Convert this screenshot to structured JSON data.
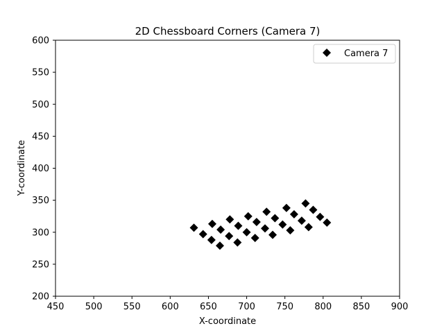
{
  "chart_data": {
    "type": "scatter",
    "title": "2D Chessboard Corners (Camera 7)",
    "xlabel": "X-coordinate",
    "ylabel": "Y-coordinate",
    "xlim": [
      450,
      900
    ],
    "ylim": [
      200,
      600
    ],
    "xticks": [
      450,
      500,
      550,
      600,
      650,
      700,
      750,
      800,
      850,
      900
    ],
    "yticks": [
      200,
      250,
      300,
      350,
      400,
      450,
      500,
      550,
      600
    ],
    "grid": false,
    "legend_position": "top-right",
    "series": [
      {
        "name": "Camera 7",
        "marker": "diamond",
        "color": "#000000",
        "points": [
          [
            631,
            307
          ],
          [
            643,
            297
          ],
          [
            654,
            288
          ],
          [
            665,
            279
          ],
          [
            655,
            313
          ],
          [
            666,
            304
          ],
          [
            677,
            294
          ],
          [
            688,
            284
          ],
          [
            678,
            320
          ],
          [
            689,
            310
          ],
          [
            700,
            300
          ],
          [
            711,
            291
          ],
          [
            702,
            325
          ],
          [
            713,
            316
          ],
          [
            724,
            306
          ],
          [
            734,
            296
          ],
          [
            726,
            332
          ],
          [
            737,
            322
          ],
          [
            747,
            312
          ],
          [
            757,
            303
          ],
          [
            752,
            338
          ],
          [
            762,
            328
          ],
          [
            772,
            318
          ],
          [
            781,
            308
          ],
          [
            777,
            345
          ],
          [
            787,
            335
          ],
          [
            796,
            324
          ],
          [
            805,
            315
          ]
        ]
      }
    ]
  }
}
